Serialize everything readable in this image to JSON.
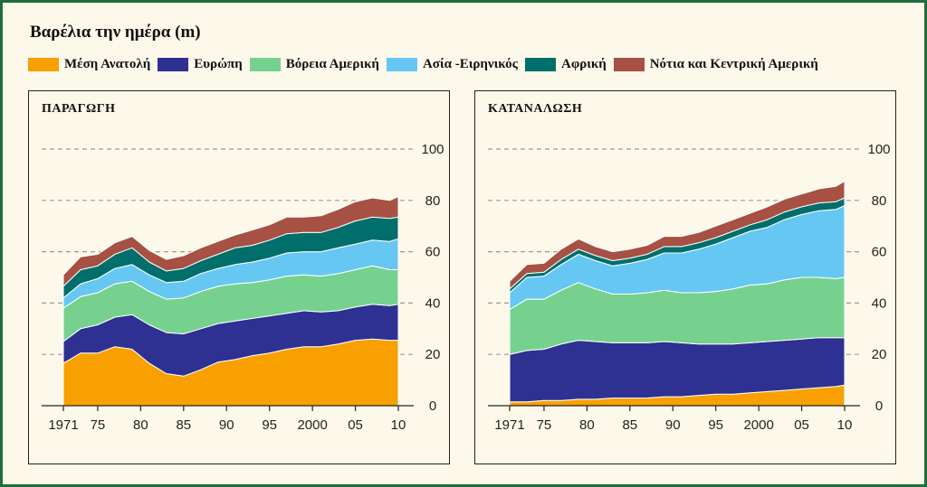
{
  "title": "Βαρέλια την ημέρα (m)",
  "legend": [
    {
      "label": "Μέση Ανατολή",
      "color": "#f7a000"
    },
    {
      "label": "Ευρώπη",
      "color": "#2e3192"
    },
    {
      "label": "Βόρεια Αμερική",
      "color": "#76d18e"
    },
    {
      "label": "Ασία -Ειρηνικός",
      "color": "#66c7f3"
    },
    {
      "label": "Αφρική",
      "color": "#006e6a"
    },
    {
      "label": "Νότια και Κεντρική Αμερική",
      "color": "#a65143"
    }
  ],
  "chart_data": [
    {
      "type": "area",
      "stacked": true,
      "title": "ΠΑΡΑΓΩΓΗ",
      "ylim": [
        0,
        100
      ],
      "yticks": [
        0,
        20,
        40,
        60,
        80,
        100
      ],
      "xlim": [
        1971,
        2010
      ],
      "xticks": [
        1971,
        1975,
        1980,
        1985,
        1990,
        1995,
        2000,
        2005,
        2010
      ],
      "xtick_labels": [
        "1971",
        "75",
        "80",
        "85",
        "90",
        "95",
        "2000",
        "05",
        "10"
      ],
      "x": [
        1971,
        1973,
        1975,
        1977,
        1979,
        1981,
        1983,
        1985,
        1987,
        1989,
        1991,
        1993,
        1995,
        1997,
        1999,
        2001,
        2003,
        2005,
        2007,
        2009,
        2010
      ],
      "series": [
        {
          "name": "Μέση Ανατολή",
          "values": [
            16.5,
            20.5,
            20.5,
            23,
            22,
            16.5,
            12.5,
            11.5,
            14,
            17,
            18,
            19.5,
            20.5,
            22,
            23,
            23,
            24,
            25.5,
            26,
            25.5,
            25.5
          ]
        },
        {
          "name": "Ευρώπη",
          "values": [
            8.5,
            9.5,
            11,
            11.5,
            13.5,
            15,
            16,
            16.5,
            16,
            15,
            15,
            14.5,
            14.5,
            14,
            14,
            13.5,
            13,
            13,
            13.5,
            13.5,
            14
          ]
        },
        {
          "name": "Βόρεια Αμερική",
          "values": [
            13,
            12.5,
            12.5,
            13,
            13,
            13,
            13,
            14,
            14.5,
            14.5,
            14.5,
            14,
            14,
            14.5,
            14,
            14,
            14.5,
            14.5,
            15,
            14,
            13.5
          ]
        },
        {
          "name": "Ασία -Ειρηνικός",
          "values": [
            4,
            5,
            5.5,
            6,
            6.5,
            6.5,
            6.5,
            6.5,
            7,
            7,
            7.5,
            8,
            8.5,
            9,
            9,
            9.5,
            10,
            10,
            10,
            11,
            12
          ]
        },
        {
          "name": "Αφρική",
          "values": [
            4.5,
            5.5,
            5,
            5.5,
            6.5,
            5,
            4.5,
            5,
            5,
            5.5,
            6.5,
            6.5,
            7,
            7.5,
            7.5,
            7.5,
            8,
            9,
            9,
            9,
            8.5
          ]
        },
        {
          "name": "Νότια και Κεντρική Αμερική",
          "values": [
            4.5,
            5,
            4.5,
            4.5,
            4.5,
            4.5,
            4.5,
            5,
            5,
            5,
            5,
            6,
            6,
            6.5,
            6,
            6.5,
            7,
            7.5,
            7.5,
            7,
            8
          ]
        }
      ]
    },
    {
      "type": "area",
      "stacked": true,
      "title": "ΚΑΤΑΝΑΛΩΣΗ",
      "ylim": [
        0,
        100
      ],
      "yticks": [
        0,
        20,
        40,
        60,
        80,
        100
      ],
      "xlim": [
        1971,
        2010
      ],
      "xticks": [
        1971,
        1975,
        1980,
        1985,
        1990,
        1995,
        2000,
        2005,
        2010
      ],
      "xtick_labels": [
        "1971",
        "75",
        "80",
        "85",
        "90",
        "95",
        "2000",
        "05",
        "10"
      ],
      "x": [
        1971,
        1973,
        1975,
        1977,
        1979,
        1981,
        1983,
        1985,
        1987,
        1989,
        1991,
        1993,
        1995,
        1997,
        1999,
        2001,
        2003,
        2005,
        2007,
        2009,
        2010
      ],
      "series": [
        {
          "name": "Μέση Ανατολή",
          "values": [
            1.5,
            1.5,
            2,
            2,
            2.5,
            2.5,
            3,
            3,
            3,
            3.5,
            3.5,
            4,
            4.5,
            4.5,
            5,
            5.5,
            6,
            6.5,
            7,
            7.5,
            8
          ]
        },
        {
          "name": "Ευρώπη",
          "values": [
            18.5,
            20,
            20,
            22,
            23,
            22.5,
            21.5,
            21.5,
            21.5,
            21.5,
            21,
            20,
            19.5,
            19.5,
            19.5,
            19.5,
            19.5,
            19.5,
            19.5,
            19,
            18.5
          ]
        },
        {
          "name": "Βόρεια Αμερική",
          "values": [
            17.5,
            20,
            19.5,
            21,
            22.5,
            20.5,
            19,
            19,
            19.5,
            20,
            19.5,
            20,
            20.5,
            21.5,
            22.5,
            22.5,
            23.5,
            24,
            23.5,
            23,
            23.5
          ]
        },
        {
          "name": "Ασία -Ειρηνικός",
          "values": [
            6.5,
            8.5,
            9,
            10,
            11,
            11,
            11,
            12,
            13,
            14.5,
            15.5,
            17,
            18.5,
            20,
            21,
            22,
            23.5,
            24.5,
            26,
            27,
            28
          ]
        },
        {
          "name": "Αφρική",
          "values": [
            1.5,
            1.5,
            1.5,
            2,
            2,
            2,
            2,
            2,
            2,
            2.5,
            2.5,
            2.5,
            2.5,
            2.5,
            2.5,
            3,
            3,
            3,
            3,
            3,
            3
          ]
        },
        {
          "name": "Νότια και Κεντρική Αμερική",
          "values": [
            3,
            3.5,
            3.5,
            4,
            4,
            3.5,
            3.5,
            3.5,
            3.5,
            4,
            4,
            4,
            4.5,
            4.5,
            4.5,
            5,
            5,
            5,
            5.5,
            6,
            6.5
          ]
        }
      ]
    }
  ]
}
